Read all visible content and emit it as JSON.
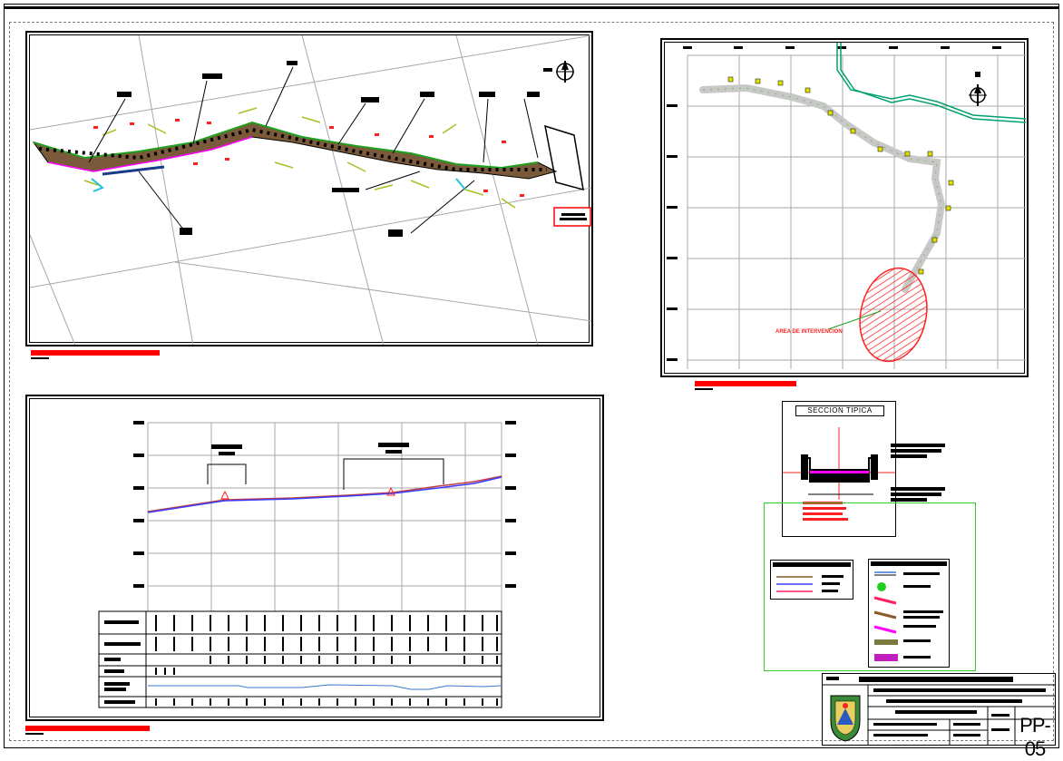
{
  "sheet": {
    "code": "PP-05"
  },
  "typical_section": {
    "title": "SECCION TIPICA"
  },
  "location_map": {
    "zone_label": "AREA DE INTERVENCION"
  },
  "colors": {
    "frame": "#000000",
    "title_bar": "#ff0000",
    "grid": "#a0a0a0",
    "road_fill": "#7a5a3a",
    "edge_green": "#1fa01f",
    "edge_magenta": "#ff00ff",
    "river": "#00a070",
    "zone_hatch": "#ff2020",
    "profile_line": "#3a3aff",
    "detail_box": "#33cc33"
  },
  "icons": [
    "north-arrow-icon",
    "municipal-seal-icon"
  ]
}
